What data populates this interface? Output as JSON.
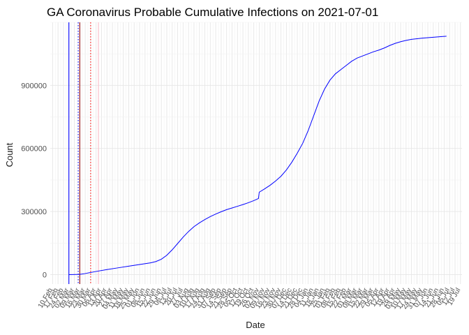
{
  "chart_data": {
    "type": "line",
    "title": "GA Coronavirus Probable Cumulative Infections on 2021-07-01",
    "xlabel": "Date",
    "ylabel": "Count",
    "ylim": [
      -45000,
      1200000
    ],
    "xlim": [
      "2020-02-07",
      "2021-07-21"
    ],
    "y_ticks": [
      0,
      300000,
      600000,
      900000
    ],
    "x_ticks": [
      "2020-02-10",
      "2020-02-17",
      "2020-02-24",
      "2020-03-02",
      "2020-03-09",
      "2020-03-16",
      "2020-03-23",
      "2020-03-30",
      "2020-04-06",
      "2020-04-13",
      "2020-04-20",
      "2020-04-27",
      "2020-05-04",
      "2020-05-11",
      "2020-05-18",
      "2020-05-25",
      "2020-06-01",
      "2020-06-08",
      "2020-06-15",
      "2020-06-22",
      "2020-06-29",
      "2020-07-06",
      "2020-07-13",
      "2020-07-20",
      "2020-07-27",
      "2020-08-03",
      "2020-08-10",
      "2020-08-17",
      "2020-08-24",
      "2020-08-31",
      "2020-09-07",
      "2020-09-14",
      "2020-09-21",
      "2020-09-28",
      "2020-10-05",
      "2020-10-12",
      "2020-10-19",
      "2020-10-26",
      "2020-11-02",
      "2020-11-09",
      "2020-11-16",
      "2020-11-23",
      "2020-11-30",
      "2020-12-07",
      "2020-12-14",
      "2020-12-21",
      "2020-12-28",
      "2021-01-04",
      "2021-01-11",
      "2021-01-18",
      "2021-01-25",
      "2021-02-01",
      "2021-02-08",
      "2021-02-15",
      "2021-02-22",
      "2021-03-01",
      "2021-03-08",
      "2021-03-15",
      "2021-03-22",
      "2021-03-29",
      "2021-04-05",
      "2021-04-12",
      "2021-04-19",
      "2021-04-26",
      "2021-05-03",
      "2021-05-10",
      "2021-05-17",
      "2021-05-24",
      "2021-05-31",
      "2021-06-07",
      "2021-06-14",
      "2021-06-21",
      "2021-06-28",
      "2021-07-05",
      "2021-07-12",
      "2021-07-19"
    ],
    "x_tick_labels": [
      "10 Feb",
      "17 Feb",
      "24 Feb",
      "02 Mar",
      "09 Mar",
      "16 Mar",
      "23 Mar",
      "30 Mar",
      "06 Apr",
      "13 Apr",
      "20 Apr",
      "27 Apr",
      "04 May",
      "11 May",
      "18 May",
      "25 May",
      "01 Jun",
      "08 Jun",
      "15 Jun",
      "22 Jun",
      "29 Jun",
      "06 Jul",
      "13 Jul",
      "20 Jul",
      "27 Jul",
      "03 Aug",
      "10 Aug",
      "17 Aug",
      "24 Aug",
      "31 Aug",
      "07 Sep",
      "14 Sep",
      "21 Sep",
      "28 Sep",
      "05 Oct",
      "12 Oct",
      "19 Oct",
      "26 Oct",
      "02 Nov",
      "09 Nov",
      "16 Nov",
      "23 Nov",
      "30 Nov",
      "07 Dec",
      "14 Dec",
      "21 Dec",
      "28 Dec",
      "04 Jan",
      "11 Jan",
      "18 Jan",
      "25 Jan",
      "01 Feb",
      "08 Feb",
      "15 Feb",
      "22 Feb",
      "01 Mar",
      "08 Mar",
      "15 Mar",
      "22 Mar",
      "29 Mar",
      "05 Apr",
      "12 Apr",
      "19 Apr",
      "26 Apr",
      "03 May",
      "10 May",
      "17 May",
      "24 May",
      "31 May",
      "07 Jun",
      "14 Jun",
      "21 Jun",
      "28 Jun",
      "05 Jul",
      "12 Jul",
      "19 Jul"
    ],
    "grid": true,
    "legend": "none",
    "series": [
      {
        "color": "#0000ff",
        "points": [
          {
            "x": "2020-03-02",
            "y": 0
          },
          {
            "x": "2020-03-16",
            "y": 1000
          },
          {
            "x": "2020-03-23",
            "y": 5000
          },
          {
            "x": "2020-04-06",
            "y": 15000
          },
          {
            "x": "2020-04-20",
            "y": 24000
          },
          {
            "x": "2020-05-04",
            "y": 32000
          },
          {
            "x": "2020-05-18",
            "y": 40000
          },
          {
            "x": "2020-06-01",
            "y": 48000
          },
          {
            "x": "2020-06-15",
            "y": 56000
          },
          {
            "x": "2020-06-22",
            "y": 62000
          },
          {
            "x": "2020-06-29",
            "y": 73000
          },
          {
            "x": "2020-07-06",
            "y": 92000
          },
          {
            "x": "2020-07-13",
            "y": 118000
          },
          {
            "x": "2020-07-20",
            "y": 148000
          },
          {
            "x": "2020-07-27",
            "y": 178000
          },
          {
            "x": "2020-08-03",
            "y": 205000
          },
          {
            "x": "2020-08-10",
            "y": 228000
          },
          {
            "x": "2020-08-17",
            "y": 246000
          },
          {
            "x": "2020-08-24",
            "y": 262000
          },
          {
            "x": "2020-08-31",
            "y": 276000
          },
          {
            "x": "2020-09-07",
            "y": 288000
          },
          {
            "x": "2020-09-14",
            "y": 299000
          },
          {
            "x": "2020-09-21",
            "y": 309000
          },
          {
            "x": "2020-09-28",
            "y": 317000
          },
          {
            "x": "2020-10-05",
            "y": 325000
          },
          {
            "x": "2020-10-12",
            "y": 333000
          },
          {
            "x": "2020-10-19",
            "y": 342000
          },
          {
            "x": "2020-10-26",
            "y": 352000
          },
          {
            "x": "2020-11-01",
            "y": 362000
          },
          {
            "x": "2020-11-02",
            "y": 392000
          },
          {
            "x": "2020-11-09",
            "y": 408000
          },
          {
            "x": "2020-11-16",
            "y": 425000
          },
          {
            "x": "2020-11-23",
            "y": 445000
          },
          {
            "x": "2020-11-30",
            "y": 468000
          },
          {
            "x": "2020-12-07",
            "y": 498000
          },
          {
            "x": "2020-12-14",
            "y": 535000
          },
          {
            "x": "2020-12-21",
            "y": 578000
          },
          {
            "x": "2020-12-28",
            "y": 625000
          },
          {
            "x": "2021-01-04",
            "y": 685000
          },
          {
            "x": "2021-01-11",
            "y": 755000
          },
          {
            "x": "2021-01-18",
            "y": 825000
          },
          {
            "x": "2021-01-25",
            "y": 882000
          },
          {
            "x": "2021-02-01",
            "y": 925000
          },
          {
            "x": "2021-02-08",
            "y": 955000
          },
          {
            "x": "2021-02-15",
            "y": 975000
          },
          {
            "x": "2021-02-22",
            "y": 995000
          },
          {
            "x": "2021-03-01",
            "y": 1015000
          },
          {
            "x": "2021-03-08",
            "y": 1030000
          },
          {
            "x": "2021-03-15",
            "y": 1040000
          },
          {
            "x": "2021-03-22",
            "y": 1050000
          },
          {
            "x": "2021-03-29",
            "y": 1060000
          },
          {
            "x": "2021-04-05",
            "y": 1068000
          },
          {
            "x": "2021-04-12",
            "y": 1078000
          },
          {
            "x": "2021-04-19",
            "y": 1090000
          },
          {
            "x": "2021-04-26",
            "y": 1100000
          },
          {
            "x": "2021-05-03",
            "y": 1108000
          },
          {
            "x": "2021-05-10",
            "y": 1114000
          },
          {
            "x": "2021-05-17",
            "y": 1119000
          },
          {
            "x": "2021-05-24",
            "y": 1122000
          },
          {
            "x": "2021-05-31",
            "y": 1125000
          },
          {
            "x": "2021-06-07",
            "y": 1127000
          },
          {
            "x": "2021-06-14",
            "y": 1129000
          },
          {
            "x": "2021-06-21",
            "y": 1131000
          },
          {
            "x": "2021-07-01",
            "y": 1134000
          }
        ]
      }
    ],
    "vertical_lines": [
      {
        "x": "2020-03-02",
        "color": "#0000ff",
        "style": "solid"
      },
      {
        "x": "2020-03-14",
        "color": "#0000ff",
        "style": "dotted"
      },
      {
        "x": "2020-03-16",
        "color": "#8b0000",
        "style": "solid"
      },
      {
        "x": "2020-03-30",
        "color": "#ff0000",
        "style": "dotted"
      },
      {
        "x": "2020-04-09",
        "color": "#ffc0cb",
        "style": "solid"
      }
    ]
  }
}
